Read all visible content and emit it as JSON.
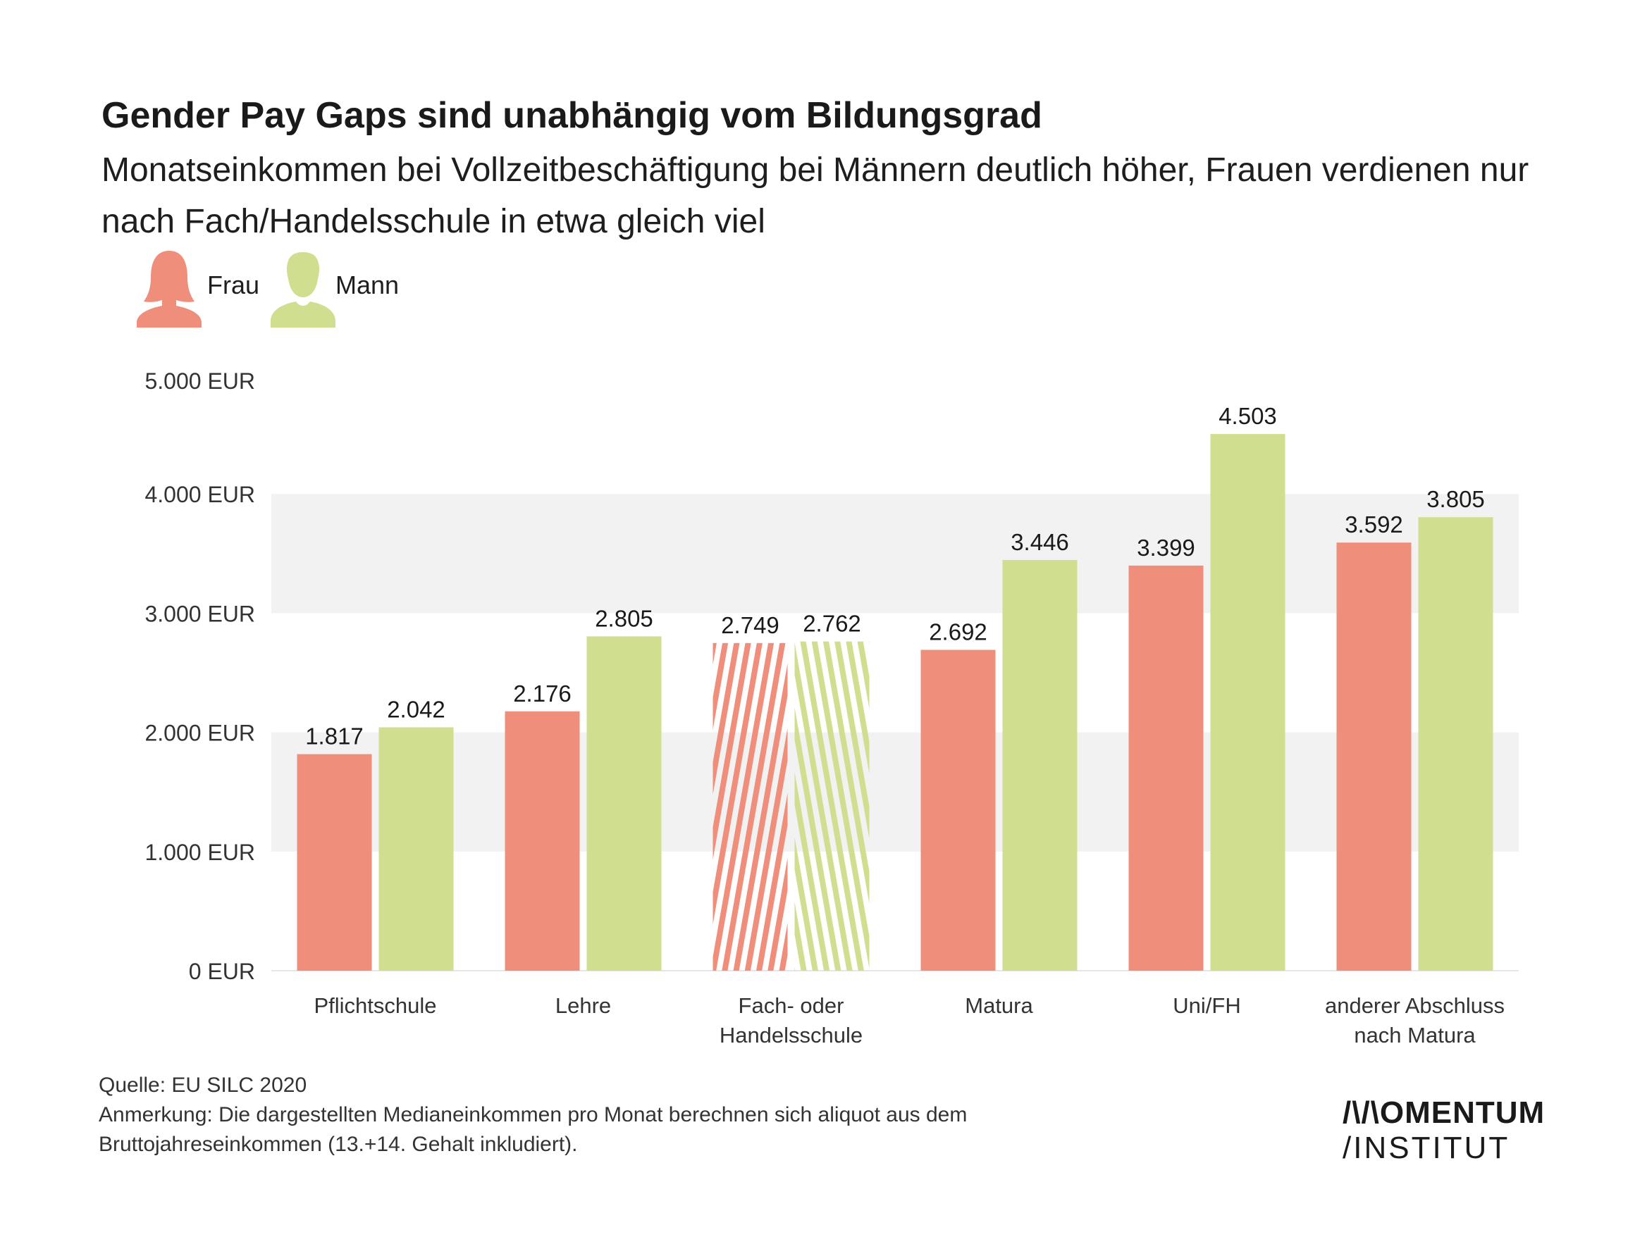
{
  "header": {
    "title": "Gender Pay Gaps sind unabhängig vom Bildungsgrad",
    "subtitle": "Monatseinkommen bei Vollzeitbeschäftigung bei Männern deutlich höher, Frauen verdienen nur nach Fach/Handelsschule in etwa gleich viel"
  },
  "legend": {
    "female": {
      "label": "Frau",
      "icon": "woman-icon",
      "color": "#ef8e7b"
    },
    "male": {
      "label": "Mann",
      "icon": "man-icon",
      "color": "#d0de8f"
    }
  },
  "chart_data": {
    "type": "bar",
    "title": "",
    "xlabel": "",
    "ylabel": "",
    "ylim": [
      0,
      5000
    ],
    "y_ticks": [
      0,
      1000,
      2000,
      3000,
      4000,
      5000
    ],
    "y_tick_labels": [
      "0 EUR",
      "1.000 EUR",
      "2.000 EUR",
      "3.000 EUR",
      "4.000 EUR",
      "5.000 EUR"
    ],
    "grid": "alternating horizontal bands",
    "categories": [
      "Pflichtschule",
      "Lehre",
      "Fach- oder Handelsschule",
      "Matura",
      "Uni/FH",
      "anderer Abschluss nach Matura"
    ],
    "category_lines": [
      [
        "Pflichtschule"
      ],
      [
        "Lehre"
      ],
      [
        "Fach- oder",
        "Handelsschule"
      ],
      [
        "Matura"
      ],
      [
        "Uni/FH"
      ],
      [
        "anderer Abschluss",
        "nach Matura"
      ]
    ],
    "series": [
      {
        "name": "Frau",
        "color": "#ef8e7b",
        "values": [
          1817,
          2176,
          2749,
          2692,
          3399,
          3592
        ],
        "value_labels": [
          "1.817",
          "2.176",
          "2.749",
          "2.692",
          "3.399",
          "3.592"
        ]
      },
      {
        "name": "Mann",
        "color": "#d0de8f",
        "values": [
          2042,
          2805,
          2762,
          3446,
          4503,
          3805
        ],
        "value_labels": [
          "2.042",
          "2.805",
          "2.762",
          "3.446",
          "4.503",
          "3.805"
        ]
      }
    ],
    "hatched_categories": [
      "Fach- oder Handelsschule"
    ]
  },
  "footer": {
    "source": "Quelle: EU SILC 2020",
    "note_line1": "Anmerkung: Die dargestellten Medianeinkommen pro Monat berechnen sich aliquot aus dem",
    "note_line2": "Bruttojahreseinkommen (13.+14. Gehalt inkludiert)."
  },
  "logo": {
    "line1": "/\\/\\OMENTUM",
    "line2": "/INSTITUT"
  }
}
